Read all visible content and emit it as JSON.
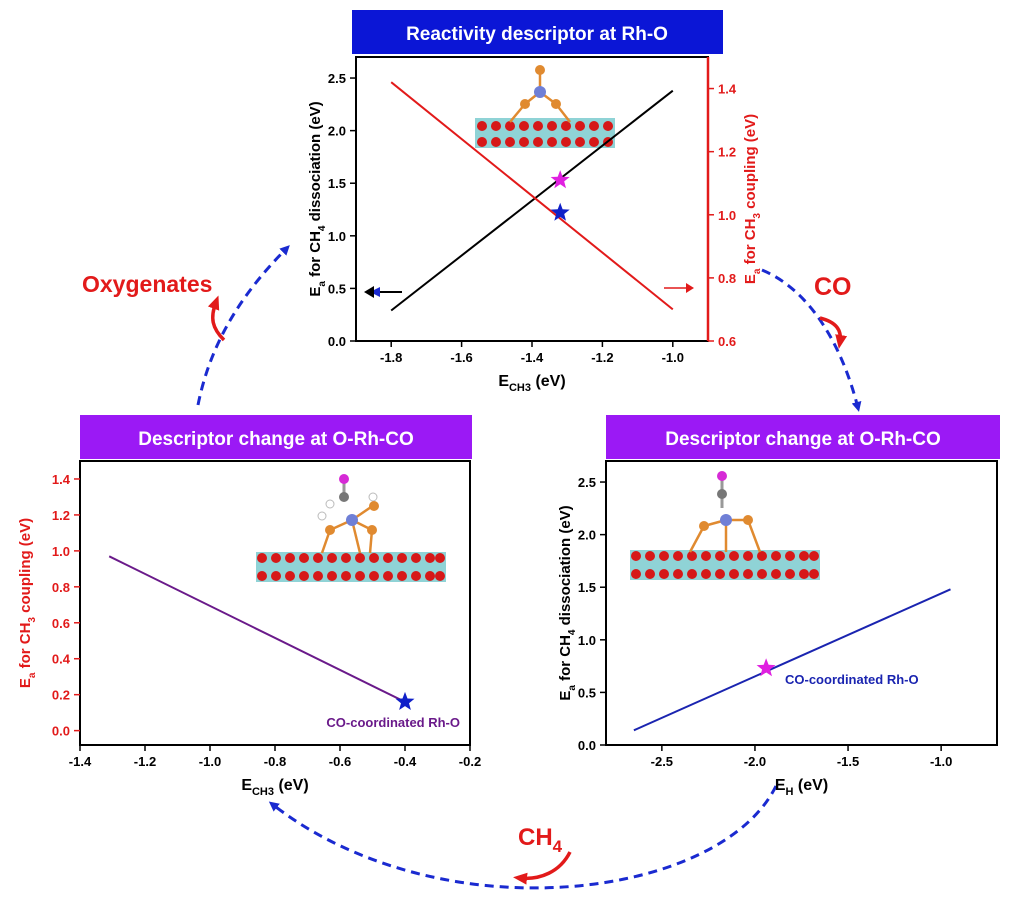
{
  "colors": {
    "title_blue": "#0b16d6",
    "title_purple": "#9b19f5",
    "red": "#e21a1a",
    "black": "#000000",
    "purple_line": "#6a1a8a",
    "blue_line": "#1a24b0",
    "star_blue": "#1020c8",
    "star_magenta": "#e020e0",
    "arrow_blue": "#1a2ad0"
  },
  "cycle_labels": {
    "oxygenates": "Oxygenates",
    "co": "CO",
    "ch4_main": "CH",
    "ch4_sub": "4"
  },
  "chart_data": [
    {
      "type": "line",
      "title": "Reactivity descriptor at Rh-O",
      "xlabel": {
        "main": "E",
        "sub": "CH3",
        "suffix": " (eV)"
      },
      "ylabel": {
        "prefix": "E",
        "sub_a": "a",
        "mid": " for CH",
        "sub": "4",
        "suffix": " dissociation (eV)"
      },
      "y2label": {
        "prefix": "E",
        "sub_a": "a",
        "mid": " for CH",
        "sub": "3",
        "suffix": " coupling (eV)"
      },
      "xlim": [
        -1.9,
        -0.9
      ],
      "ylim": [
        0.0,
        2.7
      ],
      "y2lim": [
        0.6,
        1.5
      ],
      "xticks": [
        -1.8,
        -1.6,
        -1.4,
        -1.2,
        -1.0
      ],
      "xticklabels": [
        "-1.8",
        "-1.6",
        "-1.4",
        "-1.2",
        "-1.0"
      ],
      "yticks": [
        0.0,
        0.5,
        1.0,
        1.5,
        2.0,
        2.5
      ],
      "yticklabels": [
        "0.0",
        "0.5",
        "1.0",
        "1.5",
        "2.0",
        "2.5"
      ],
      "y2ticks": [
        0.6,
        0.8,
        1.0,
        1.2,
        1.4
      ],
      "y2ticklabels": [
        "0.6",
        "0.8",
        "1.0",
        "1.2",
        "1.4"
      ],
      "series": [
        {
          "axis": "left",
          "color": "#000000",
          "x": [
            -1.8,
            -1.0
          ],
          "y": [
            0.29,
            2.38
          ]
        },
        {
          "axis": "right",
          "color": "#e21a1a",
          "x": [
            -1.8,
            -1.0
          ],
          "y": [
            1.42,
            0.7
          ]
        }
      ],
      "markers": [
        {
          "axis": "left",
          "shape": "star",
          "color": "#1020c8",
          "x": -1.32,
          "y": 1.22
        },
        {
          "axis": "right",
          "shape": "star",
          "color": "#e020e0",
          "x": -1.32,
          "y": 1.11
        }
      ],
      "axis_arrows": [
        "left",
        "right"
      ]
    },
    {
      "type": "line",
      "title": "Descriptor change at O-Rh-CO",
      "xlabel": {
        "main": "E",
        "sub": "CH3",
        "suffix": " (eV)"
      },
      "ylabel": {
        "prefix": "E",
        "sub_a": "a",
        "mid": " for CH",
        "sub": "3",
        "suffix": " coupling (eV)"
      },
      "xlim": [
        -1.4,
        -0.2
      ],
      "ylim": [
        -0.08,
        1.5
      ],
      "xticks": [
        -1.4,
        -1.2,
        -1.0,
        -0.8,
        -0.6,
        -0.4,
        -0.2
      ],
      "xticklabels": [
        "-1.4",
        "-1.2",
        "-1.0",
        "-0.8",
        "-0.6",
        "-0.4",
        "-0.2"
      ],
      "yticks": [
        0.0,
        0.2,
        0.4,
        0.6,
        0.8,
        1.0,
        1.2,
        1.4
      ],
      "yticklabels": [
        "0.0",
        "0.2",
        "0.4",
        "0.6",
        "0.8",
        "1.0",
        "1.2",
        "1.4"
      ],
      "series": [
        {
          "axis": "left",
          "color": "#6a1a8a",
          "x": [
            -1.31,
            -0.4
          ],
          "y": [
            0.97,
            0.16
          ]
        }
      ],
      "markers": [
        {
          "axis": "left",
          "shape": "star",
          "color": "#1020c8",
          "x": -0.4,
          "y": 0.16
        }
      ],
      "annotation": "CO-coordinated Rh-O"
    },
    {
      "type": "line",
      "title": "Descriptor change at O-Rh-CO",
      "xlabel": {
        "main": "E",
        "sub": "H",
        "suffix": " (eV)"
      },
      "ylabel": {
        "prefix": "E",
        "sub_a": "a",
        "mid": " for CH",
        "sub": "4",
        "suffix": " dissociation (eV)"
      },
      "xlim": [
        -2.8,
        -0.7
      ],
      "ylim": [
        0.0,
        2.7
      ],
      "xticks": [
        -2.5,
        -2.0,
        -1.5,
        -1.0
      ],
      "xticklabels": [
        "-2.5",
        "-2.0",
        "-1.5",
        "-1.0"
      ],
      "yticks": [
        0.0,
        0.5,
        1.0,
        1.5,
        2.0,
        2.5
      ],
      "yticklabels": [
        "0.0",
        "0.5",
        "1.0",
        "1.5",
        "2.0",
        "2.5"
      ],
      "series": [
        {
          "axis": "left",
          "color": "#1a24b0",
          "x": [
            -2.65,
            -0.95
          ],
          "y": [
            0.14,
            1.48
          ]
        }
      ],
      "markers": [
        {
          "axis": "left",
          "shape": "star",
          "color": "#e020e0",
          "x": -1.94,
          "y": 0.73
        }
      ],
      "annotation": "CO-coordinated Rh-O"
    }
  ]
}
